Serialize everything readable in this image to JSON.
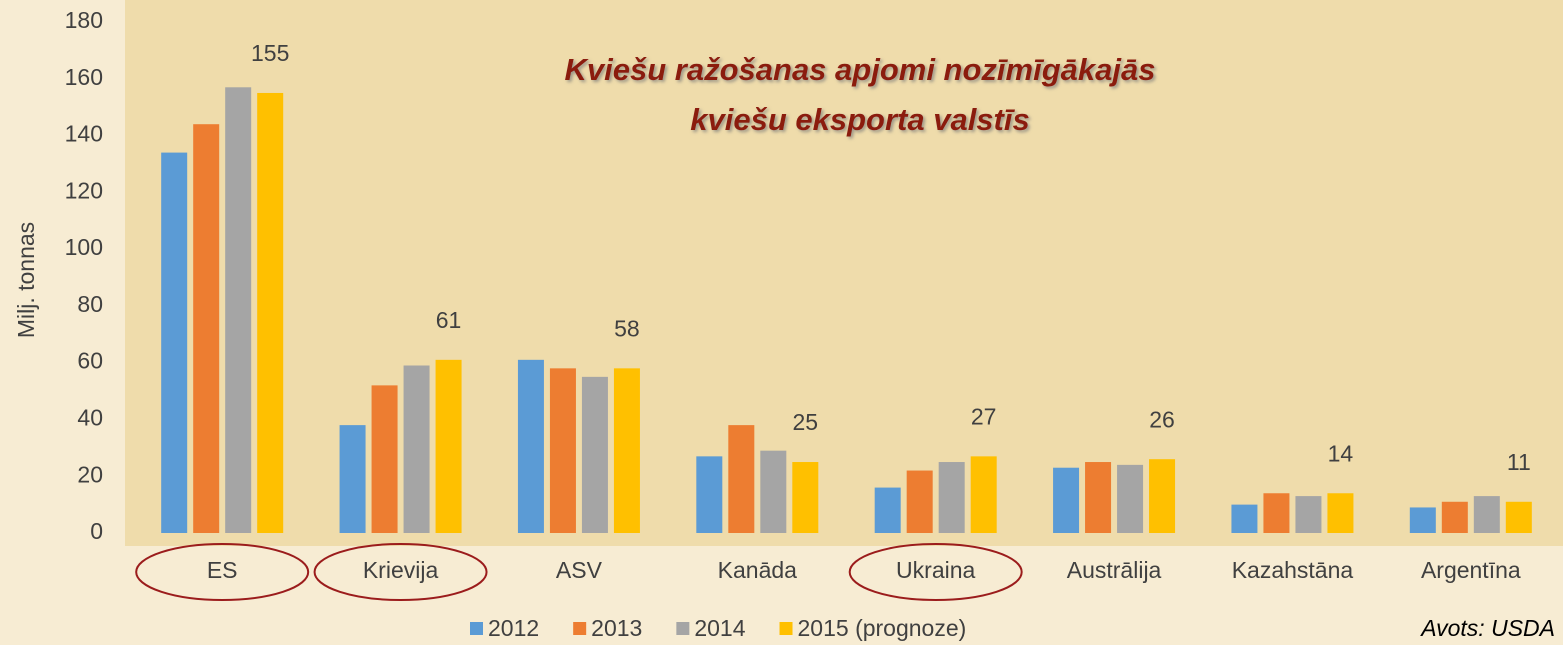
{
  "chart_data": {
    "type": "bar",
    "title": "Kviešu ražošanas apjomi nozīmīgākajās",
    "subtitle": "kviešu eksporta valstīs",
    "y_label": "Milj. tonnas",
    "source": "Avots: USDA",
    "categories": [
      "ES",
      "Krievija",
      "ASV",
      "Kanāda",
      "Ukraina",
      "Austrālija",
      "Kazahstāna",
      "Argentīna"
    ],
    "highlighted_categories": [
      0,
      1,
      4
    ],
    "series": [
      {
        "name": "2012",
        "color": "#5b9bd5",
        "values": [
          134,
          38,
          61,
          27,
          16,
          23,
          10,
          9
        ]
      },
      {
        "name": "2013",
        "color": "#ed7d31",
        "values": [
          144,
          52,
          58,
          38,
          22,
          25,
          14,
          11
        ]
      },
      {
        "name": "2014",
        "color": "#a5a5a5",
        "values": [
          157,
          59,
          55,
          29,
          25,
          24,
          13,
          13
        ]
      },
      {
        "name": "2015 (prognoze)",
        "color": "#ffc000",
        "values": [
          155,
          61,
          58,
          25,
          27,
          26,
          14,
          11
        ],
        "data_labels": true
      }
    ],
    "ylim": [
      0,
      180
    ],
    "yticks": [
      0,
      20,
      40,
      60,
      80,
      100,
      120,
      140,
      160,
      180
    ],
    "grid": true
  }
}
